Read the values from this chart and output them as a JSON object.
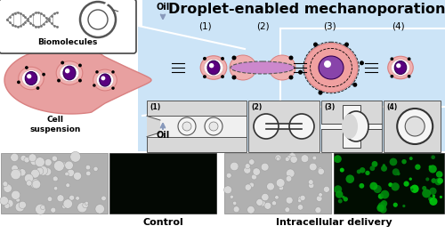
{
  "title": "Droplet-enabled mechanoporation",
  "title_fontsize": 11.5,
  "bg_color": "#ffffff",
  "light_blue": "#cce4f7",
  "pink_cell": "#e8a0a0",
  "pink_light": "#f5c6c6",
  "pink_dark": "#d98080",
  "purple_nucleus": "#5a0080",
  "purple_mid": "#8844aa",
  "white_color": "#ffffff",
  "black_color": "#000000",
  "arrow_blue": "#8899bb",
  "gray_img": "#b8b8b8",
  "dark_green_bg": "#010801",
  "labels_bottom": [
    "Control",
    "Intracellular delivery"
  ],
  "step_labels": [
    "(1)",
    "(2)",
    "(3)",
    "(4)"
  ],
  "oil_label": "Oil",
  "cell_suspension_label": "Cell\nsuspension",
  "biomolecules_label": "Biomolecules"
}
